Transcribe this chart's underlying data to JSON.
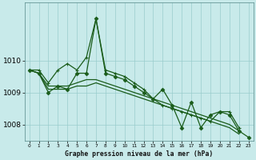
{
  "background_color": "#c8eaea",
  "grid_color": "#99cccc",
  "line_color": "#1a5c1a",
  "title": "Graphe pression niveau de la mer (hPa)",
  "x_labels": [
    "0",
    "1",
    "2",
    "3",
    "4",
    "5",
    "6",
    "7",
    "8",
    "9",
    "10",
    "11",
    "12",
    "13",
    "14",
    "15",
    "16",
    "17",
    "18",
    "19",
    "20",
    "21",
    "22",
    "23"
  ],
  "ylim": [
    1007.5,
    1011.8
  ],
  "yticks": [
    1008,
    1009,
    1010
  ],
  "series": [
    {
      "data": [
        1009.7,
        1009.7,
        1009.3,
        1009.7,
        1009.9,
        1009.7,
        1010.1,
        1011.3,
        1009.7,
        1009.6,
        1009.5,
        1009.3,
        1009.1,
        1008.8,
        1008.6,
        1008.5,
        1008.4,
        1008.3,
        1008.2,
        1008.1,
        1008.4,
        1008.4,
        1007.9,
        null
      ],
      "marker": "+",
      "lw": 0.9
    },
    {
      "data": [
        1009.7,
        1009.6,
        1009.2,
        1009.2,
        1009.2,
        1009.3,
        1009.4,
        1009.4,
        1009.3,
        1009.2,
        1009.1,
        1009.0,
        1008.9,
        1008.8,
        1008.7,
        1008.6,
        1008.5,
        1008.4,
        1008.3,
        1008.2,
        1008.1,
        1008.0,
        1007.8,
        null
      ],
      "marker": null,
      "lw": 0.9
    },
    {
      "data": [
        1009.7,
        1009.6,
        1009.1,
        1009.1,
        1009.1,
        1009.2,
        1009.2,
        1009.3,
        1009.2,
        1009.1,
        1009.0,
        1008.9,
        1008.8,
        1008.7,
        1008.6,
        1008.5,
        1008.4,
        1008.3,
        1008.2,
        1008.1,
        1008.0,
        1007.9,
        1007.7,
        null
      ],
      "marker": null,
      "lw": 0.9
    },
    {
      "data": [
        1009.7,
        1009.6,
        1009.0,
        1009.2,
        1009.1,
        1009.6,
        1009.6,
        1011.3,
        1009.6,
        1009.5,
        1009.4,
        1009.2,
        1009.0,
        1008.8,
        1009.1,
        1008.6,
        1007.9,
        1008.7,
        1007.9,
        1008.3,
        1008.4,
        1008.3,
        1007.8,
        1007.6
      ],
      "marker": "D",
      "lw": 0.9
    }
  ]
}
